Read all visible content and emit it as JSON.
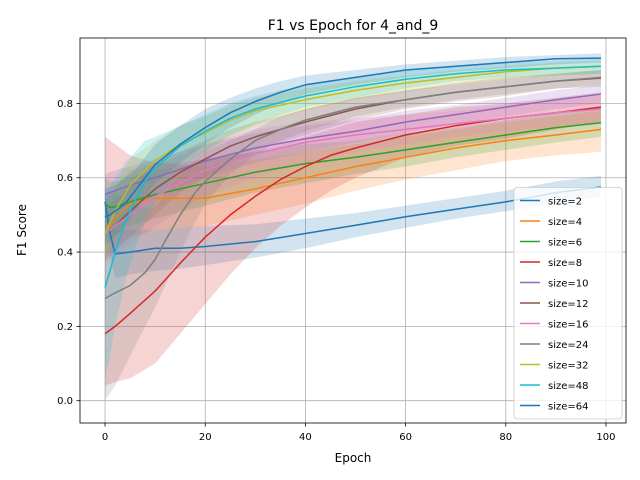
{
  "chart_data": {
    "type": "line",
    "title": "F1 vs Epoch for 4_and_9",
    "xlabel": "Epoch",
    "ylabel": "F1 Score",
    "xlim": [
      -5,
      104
    ],
    "ylim": [
      -0.06,
      0.976
    ],
    "xticks": [
      0,
      20,
      40,
      60,
      80,
      100
    ],
    "yticks": [
      0.0,
      0.2,
      0.4,
      0.6,
      0.8
    ],
    "xtick_labels": [
      "0",
      "20",
      "40",
      "60",
      "80",
      "100"
    ],
    "ytick_labels": [
      "0.0",
      "0.2",
      "0.4",
      "0.6",
      "0.8"
    ],
    "grid": true,
    "legend_position": "lower-right",
    "shaded_band": true,
    "series": [
      {
        "name": "size=2",
        "color": "#1f77b4",
        "x": [
          0,
          1,
          2,
          5,
          10,
          15,
          20,
          30,
          40,
          50,
          60,
          70,
          80,
          90,
          99
        ],
        "y": [
          0.535,
          0.45,
          0.395,
          0.4,
          0.41,
          0.41,
          0.415,
          0.428,
          0.45,
          0.472,
          0.495,
          0.515,
          0.535,
          0.56,
          0.575
        ],
        "lower": [
          0.52,
          0.39,
          0.33,
          0.34,
          0.35,
          0.355,
          0.365,
          0.385,
          0.41,
          0.44,
          0.465,
          0.49,
          0.51,
          0.53,
          0.55
        ],
        "upper": [
          0.55,
          0.5,
          0.46,
          0.46,
          0.46,
          0.465,
          0.47,
          0.475,
          0.49,
          0.505,
          0.525,
          0.545,
          0.565,
          0.59,
          0.605
        ]
      },
      {
        "name": "size=4",
        "color": "#ff7f0e",
        "x": [
          0,
          1,
          2,
          5,
          10,
          20,
          30,
          40,
          50,
          60,
          70,
          80,
          90,
          99
        ],
        "y": [
          0.45,
          0.47,
          0.49,
          0.53,
          0.545,
          0.545,
          0.57,
          0.6,
          0.63,
          0.655,
          0.68,
          0.7,
          0.715,
          0.73
        ],
        "lower": [
          0.37,
          0.4,
          0.42,
          0.44,
          0.46,
          0.47,
          0.5,
          0.53,
          0.565,
          0.595,
          0.62,
          0.645,
          0.66,
          0.67
        ],
        "upper": [
          0.53,
          0.55,
          0.57,
          0.62,
          0.64,
          0.63,
          0.65,
          0.67,
          0.69,
          0.71,
          0.73,
          0.75,
          0.765,
          0.78
        ]
      },
      {
        "name": "size=6",
        "color": "#2ca02c",
        "x": [
          0,
          1,
          2,
          5,
          10,
          20,
          30,
          40,
          50,
          60,
          70,
          80,
          90,
          99
        ],
        "y": [
          0.53,
          0.52,
          0.522,
          0.535,
          0.555,
          0.585,
          0.615,
          0.638,
          0.655,
          0.675,
          0.695,
          0.715,
          0.735,
          0.748
        ],
        "lower": [
          0.46,
          0.45,
          0.45,
          0.47,
          0.49,
          0.525,
          0.56,
          0.585,
          0.61,
          0.63,
          0.655,
          0.675,
          0.695,
          0.71
        ],
        "upper": [
          0.6,
          0.59,
          0.59,
          0.6,
          0.62,
          0.645,
          0.67,
          0.69,
          0.7,
          0.72,
          0.735,
          0.755,
          0.775,
          0.79
        ]
      },
      {
        "name": "size=8",
        "color": "#d62728",
        "x": [
          0,
          2,
          5,
          10,
          15,
          20,
          25,
          30,
          35,
          40,
          45,
          50,
          60,
          70,
          80,
          90,
          99
        ],
        "y": [
          0.18,
          0.2,
          0.235,
          0.295,
          0.37,
          0.44,
          0.5,
          0.55,
          0.595,
          0.63,
          0.66,
          0.68,
          0.715,
          0.74,
          0.76,
          0.775,
          0.79
        ],
        "lower": [
          0.04,
          0.05,
          0.06,
          0.1,
          0.18,
          0.26,
          0.34,
          0.41,
          0.47,
          0.52,
          0.565,
          0.6,
          0.655,
          0.685,
          0.705,
          0.73,
          0.75
        ],
        "upper": [
          0.71,
          0.69,
          0.66,
          0.64,
          0.64,
          0.65,
          0.66,
          0.67,
          0.69,
          0.71,
          0.73,
          0.75,
          0.77,
          0.79,
          0.8,
          0.815,
          0.83
        ]
      },
      {
        "name": "size=10",
        "color": "#9467bd",
        "x": [
          0,
          2,
          5,
          10,
          20,
          30,
          40,
          50,
          60,
          70,
          80,
          90,
          99
        ],
        "y": [
          0.555,
          0.565,
          0.58,
          0.6,
          0.645,
          0.68,
          0.705,
          0.725,
          0.75,
          0.77,
          0.79,
          0.81,
          0.825
        ],
        "lower": [
          0.5,
          0.51,
          0.53,
          0.55,
          0.6,
          0.64,
          0.67,
          0.695,
          0.72,
          0.745,
          0.765,
          0.785,
          0.8
        ],
        "upper": [
          0.61,
          0.62,
          0.63,
          0.65,
          0.69,
          0.72,
          0.74,
          0.755,
          0.78,
          0.795,
          0.815,
          0.835,
          0.85
        ]
      },
      {
        "name": "size=12",
        "color": "#8c564b",
        "x": [
          0,
          2,
          5,
          10,
          15,
          20,
          25,
          30,
          35,
          40,
          50,
          60,
          70,
          80,
          90,
          99
        ],
        "y": [
          0.45,
          0.47,
          0.51,
          0.57,
          0.615,
          0.65,
          0.685,
          0.71,
          0.73,
          0.75,
          0.785,
          0.81,
          0.83,
          0.845,
          0.86,
          0.868
        ],
        "lower": [
          0.38,
          0.4,
          0.44,
          0.5,
          0.56,
          0.6,
          0.64,
          0.67,
          0.695,
          0.715,
          0.755,
          0.785,
          0.805,
          0.82,
          0.84,
          0.845
        ],
        "upper": [
          0.52,
          0.54,
          0.58,
          0.64,
          0.67,
          0.7,
          0.73,
          0.75,
          0.765,
          0.785,
          0.815,
          0.835,
          0.855,
          0.87,
          0.88,
          0.89
        ]
      },
      {
        "name": "size=16",
        "color": "#e377c2",
        "x": [
          0,
          2,
          5,
          10,
          20,
          30,
          40,
          50,
          60,
          70,
          80,
          90,
          99
        ],
        "y": [
          0.45,
          0.47,
          0.5,
          0.55,
          0.62,
          0.665,
          0.695,
          0.715,
          0.73,
          0.745,
          0.76,
          0.775,
          0.785
        ],
        "lower": [
          0.37,
          0.39,
          0.42,
          0.47,
          0.55,
          0.6,
          0.64,
          0.67,
          0.69,
          0.71,
          0.725,
          0.74,
          0.75
        ],
        "upper": [
          0.53,
          0.55,
          0.58,
          0.63,
          0.69,
          0.73,
          0.75,
          0.76,
          0.77,
          0.78,
          0.795,
          0.81,
          0.82
        ]
      },
      {
        "name": "size=24",
        "color": "#7f7f7f",
        "x": [
          0,
          2,
          5,
          8,
          10,
          12,
          15,
          18,
          20,
          25,
          30,
          35,
          40,
          50,
          60,
          70,
          80,
          90,
          99
        ],
        "y": [
          0.275,
          0.29,
          0.31,
          0.345,
          0.38,
          0.43,
          0.5,
          0.56,
          0.59,
          0.65,
          0.7,
          0.73,
          0.755,
          0.79,
          0.81,
          0.83,
          0.845,
          0.86,
          0.87
        ],
        "lower": [
          0.0,
          0.04,
          0.12,
          0.2,
          0.25,
          0.31,
          0.4,
          0.48,
          0.53,
          0.61,
          0.66,
          0.7,
          0.725,
          0.765,
          0.79,
          0.81,
          0.825,
          0.84,
          0.85
        ],
        "upper": [
          0.55,
          0.56,
          0.53,
          0.52,
          0.52,
          0.56,
          0.61,
          0.65,
          0.67,
          0.7,
          0.73,
          0.765,
          0.785,
          0.815,
          0.835,
          0.85,
          0.865,
          0.88,
          0.89
        ]
      },
      {
        "name": "size=32",
        "color": "#bcbd22",
        "x": [
          0,
          1,
          2,
          5,
          10,
          15,
          20,
          25,
          30,
          40,
          50,
          60,
          70,
          80,
          90,
          99
        ],
        "y": [
          0.45,
          0.48,
          0.51,
          0.58,
          0.645,
          0.69,
          0.72,
          0.755,
          0.78,
          0.81,
          0.835,
          0.855,
          0.87,
          0.885,
          0.895,
          0.9
        ],
        "lower": [
          0.38,
          0.41,
          0.44,
          0.51,
          0.58,
          0.63,
          0.67,
          0.71,
          0.74,
          0.78,
          0.81,
          0.83,
          0.85,
          0.865,
          0.875,
          0.88
        ],
        "upper": [
          0.52,
          0.55,
          0.58,
          0.65,
          0.7,
          0.74,
          0.765,
          0.795,
          0.815,
          0.84,
          0.86,
          0.875,
          0.89,
          0.9,
          0.91,
          0.915
        ]
      },
      {
        "name": "size=48",
        "color": "#17becf",
        "x": [
          0,
          1,
          2,
          4,
          6,
          8,
          10,
          15,
          20,
          25,
          30,
          40,
          50,
          60,
          70,
          80,
          90,
          99
        ],
        "y": [
          0.305,
          0.35,
          0.4,
          0.48,
          0.54,
          0.59,
          0.625,
          0.685,
          0.725,
          0.76,
          0.785,
          0.82,
          0.845,
          0.865,
          0.88,
          0.89,
          0.895,
          0.9
        ],
        "lower": [
          0.06,
          0.12,
          0.2,
          0.32,
          0.41,
          0.48,
          0.53,
          0.62,
          0.67,
          0.715,
          0.745,
          0.79,
          0.815,
          0.84,
          0.86,
          0.87,
          0.875,
          0.88
        ],
        "upper": [
          0.55,
          0.58,
          0.6,
          0.64,
          0.67,
          0.7,
          0.71,
          0.74,
          0.77,
          0.8,
          0.82,
          0.85,
          0.87,
          0.89,
          0.9,
          0.91,
          0.915,
          0.92
        ]
      },
      {
        "name": "size=64",
        "color": "#1f77b4",
        "x": [
          0,
          1,
          2,
          4,
          6,
          8,
          10,
          15,
          20,
          25,
          30,
          35,
          40,
          50,
          60,
          70,
          80,
          90,
          99
        ],
        "y": [
          0.495,
          0.5,
          0.51,
          0.53,
          0.565,
          0.6,
          0.635,
          0.69,
          0.735,
          0.775,
          0.805,
          0.83,
          0.85,
          0.87,
          0.89,
          0.9,
          0.91,
          0.92,
          0.922
        ],
        "lower": [
          0.42,
          0.43,
          0.44,
          0.47,
          0.51,
          0.55,
          0.585,
          0.64,
          0.69,
          0.735,
          0.77,
          0.8,
          0.825,
          0.85,
          0.87,
          0.885,
          0.895,
          0.905,
          0.91
        ],
        "upper": [
          0.57,
          0.575,
          0.58,
          0.6,
          0.62,
          0.655,
          0.69,
          0.74,
          0.785,
          0.815,
          0.84,
          0.86,
          0.875,
          0.89,
          0.905,
          0.915,
          0.925,
          0.93,
          0.935
        ]
      }
    ]
  }
}
